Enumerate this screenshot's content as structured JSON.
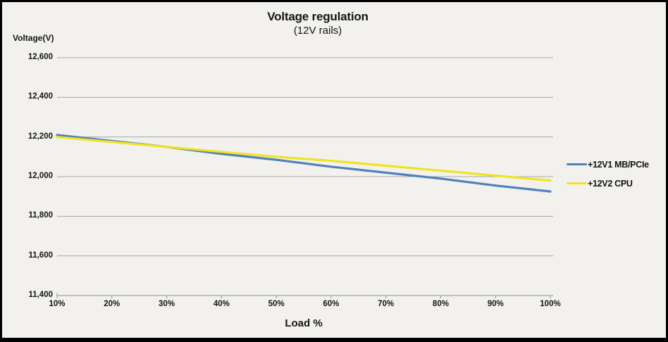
{
  "chart": {
    "title": "Voltage regulation",
    "subtitle": "(12V rails)",
    "y_axis_title": "Voltage(V)",
    "x_axis_title": "Load %"
  },
  "chart_data": {
    "type": "line",
    "title": "Voltage regulation",
    "subtitle": "(12V rails)",
    "xlabel": "Load %",
    "ylabel": "Voltage(V)",
    "categories": [
      "10%",
      "20%",
      "30%",
      "40%",
      "50%",
      "60%",
      "70%",
      "80%",
      "90%",
      "100%"
    ],
    "y_tick_labels": [
      "12,600",
      "12,400",
      "12,200",
      "12,000",
      "11,800",
      "11,600",
      "11,400"
    ],
    "y_tick_values": [
      12600,
      12400,
      12200,
      12000,
      11800,
      11600,
      11400
    ],
    "ylim": [
      11400,
      12600
    ],
    "grid": true,
    "legend_position": "right",
    "series": [
      {
        "name": "+12V1 MB/PCIe",
        "color": "#4f81bd",
        "values": [
          12210,
          12180,
          12150,
          12115,
          12085,
          12050,
          12020,
          11990,
          11955,
          11925
        ]
      },
      {
        "name": "+12V2 CPU",
        "color": "#efe423",
        "values": [
          12200,
          12175,
          12150,
          12125,
          12100,
          12080,
          12055,
          12030,
          12005,
          11980
        ]
      }
    ]
  },
  "colors": {
    "background": "#f2f1ee",
    "gridline": "#a6a6a6",
    "axis": "#8f8f8f",
    "text": "#141414",
    "series1": "#4f81bd",
    "series2": "#efe423"
  }
}
